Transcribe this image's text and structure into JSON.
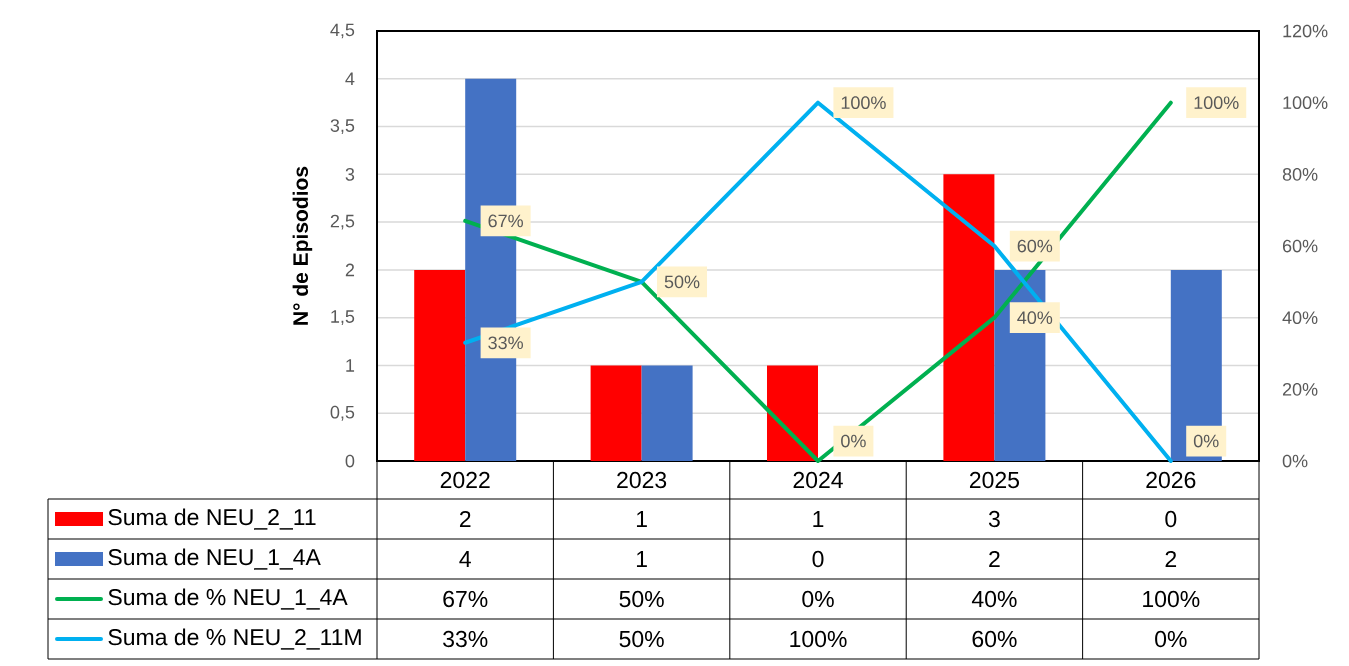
{
  "chart_data": {
    "type": "bar",
    "categories": [
      "2022",
      "2023",
      "2024",
      "2025",
      "2026"
    ],
    "ylabel": "N° de Episodios",
    "ylim": [
      0,
      4.5
    ],
    "yticks": [
      0,
      {
        "value": 0.5,
        "label": "0,5"
      },
      1,
      {
        "value": 1.5,
        "label": "1,5"
      },
      2,
      {
        "value": 2.5,
        "label": "2,5"
      },
      3,
      {
        "value": 3.5,
        "label": "3,5"
      },
      4,
      {
        "value": 4.5,
        "label": "4,5"
      }
    ],
    "y2lim": [
      0,
      120
    ],
    "y2ticks": [
      {
        "value": 0,
        "label": "0%"
      },
      {
        "value": 20,
        "label": "20%"
      },
      {
        "value": 40,
        "label": "40%"
      },
      {
        "value": 60,
        "label": "60%"
      },
      {
        "value": 80,
        "label": "80%"
      },
      {
        "value": 100,
        "label": "100%"
      },
      {
        "value": 120,
        "label": "120%"
      }
    ],
    "grid": "y",
    "legend": "bottom",
    "series": [
      {
        "name": "Suma de NEU_2_11",
        "color": "#ff0000",
        "values": [
          2,
          1,
          1,
          3,
          0
        ],
        "value_labels": [
          "2",
          "1",
          "1",
          "3",
          "0"
        ]
      },
      {
        "name": "Suma de NEU_1_4A",
        "color": "#4472c4",
        "values": [
          4,
          1,
          0,
          2,
          2
        ],
        "value_labels": [
          "4",
          "1",
          "0",
          "2",
          "2"
        ]
      },
      {
        "name": "Suma de % NEU_1_4A",
        "type": "line",
        "axis": "y2",
        "color": "#00b050",
        "values": [
          67,
          50,
          0,
          40,
          100
        ],
        "value_labels": [
          "67%",
          "50%",
          "0%",
          "40%",
          "100%"
        ]
      },
      {
        "name": "Suma de % NEU_2_11M",
        "type": "line",
        "axis": "y2",
        "color": "#00b0f0",
        "values": [
          33,
          50,
          100,
          60,
          0
        ],
        "value_labels": [
          "33%",
          "50%",
          "100%",
          "60%",
          "0%"
        ]
      }
    ]
  }
}
